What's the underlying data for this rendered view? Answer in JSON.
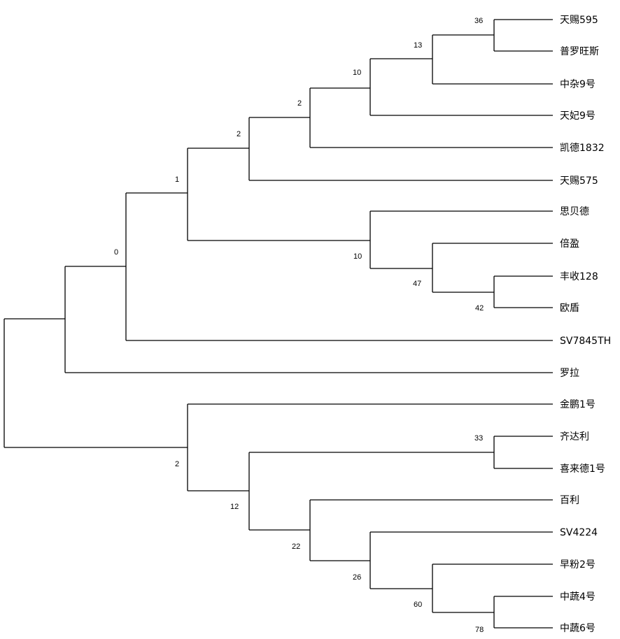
{
  "tree": {
    "leaves": [
      "天赐595",
      "普罗旺斯",
      "中杂9号",
      "天妃9号",
      "凯德1832",
      "天赐575",
      "思贝德",
      "倍盈",
      "丰收128",
      "欧盾",
      "SV7845TH",
      "罗拉",
      "金鹏1号",
      "齐达利",
      "喜来德1号",
      "百利",
      "SV4224",
      "早粉2号",
      "中蔬4号",
      "中蔬6号"
    ],
    "bootstrap": {
      "n_36": "36",
      "n_13": "13",
      "n_10a": "10",
      "n_2a": "2",
      "n_2b": "2",
      "n_1": "1",
      "n_10b": "10",
      "n_47": "47",
      "n_42": "42",
      "n_0": "0",
      "n_2c": "2",
      "n_33": "33",
      "n_12": "12",
      "n_22": "22",
      "n_26": "26",
      "n_60": "60",
      "n_78": "78"
    }
  }
}
